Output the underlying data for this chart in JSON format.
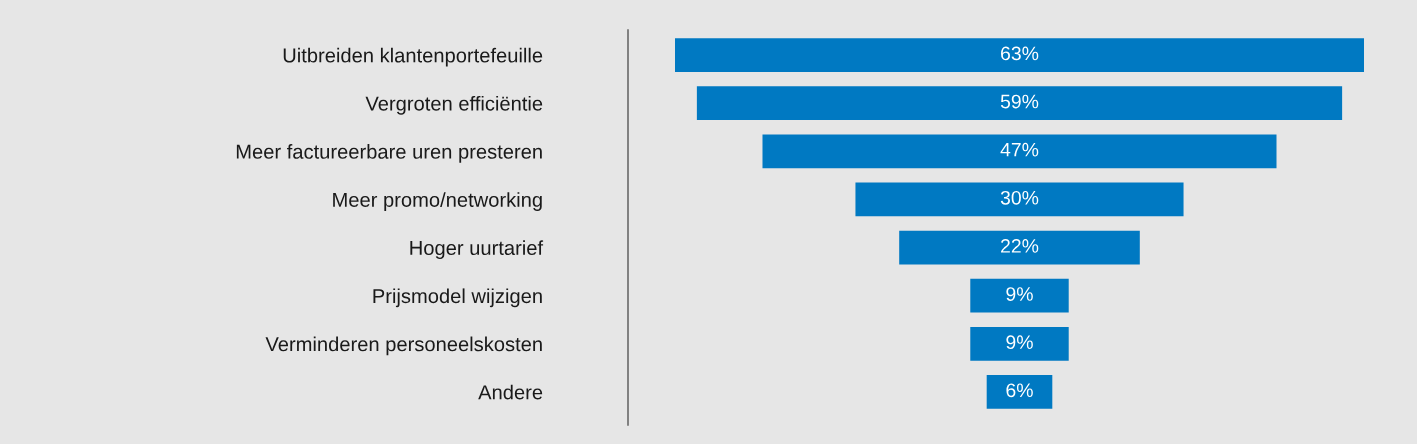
{
  "chart_data": {
    "type": "other",
    "categories": [
      "Uitbreiden klantenportefeuille",
      "Vergroten efficiëntie",
      "Meer factureerbare uren presteren",
      "Meer promo/networking",
      "Hoger uurtarief",
      "Prijsmodel wijzigen",
      "Verminderen personeelskosten",
      "Andere"
    ],
    "values": [
      63,
      59,
      47,
      30,
      22,
      9,
      9,
      6
    ],
    "value_labels": [
      "63%",
      "59%",
      "47%",
      "30%",
      "22%",
      "9%",
      "9%",
      "6%"
    ],
    "color": "#0079c2"
  }
}
